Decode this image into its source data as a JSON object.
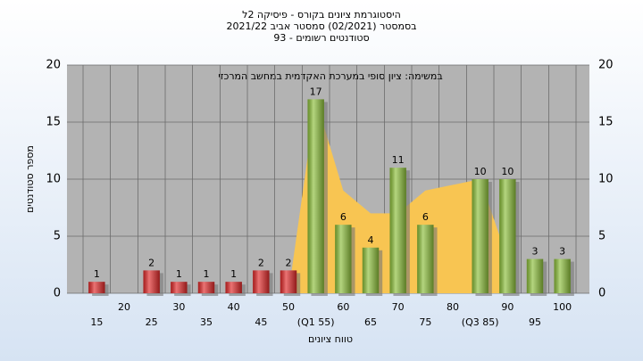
{
  "chart_data": {
    "type": "bar",
    "title_lines": [
      "היסטוגרמת ציונים בקורס - פיסיקה 2ל",
      "בסמסטר (02/2021) סמסטר אביב 2021/22",
      "סטודנטים רשומים - 93"
    ],
    "annotation": "במשימה: ציון סופי במערכת האקדמית במחשב המרכזי",
    "y_label": "מספר סטודנטים",
    "x_label": "טווח ציונים",
    "categories": [
      "15",
      "20",
      "25",
      "30",
      "35",
      "40",
      "45",
      "50",
      "(Q1 55)",
      "60",
      "65",
      "70",
      "75",
      "80",
      "(Q3 85)",
      "90",
      "95",
      "100"
    ],
    "values": [
      1,
      null,
      2,
      1,
      1,
      1,
      2,
      2,
      17,
      6,
      4,
      11,
      6,
      null,
      10,
      10,
      3,
      3
    ],
    "colors": [
      "#e02828",
      "#e02828",
      "#e02828",
      "#e02828",
      "#e02828",
      "#e02828",
      "#e02828",
      "#e02828",
      "#8cbf3a",
      "#8cbf3a",
      "#8cbf3a",
      "#8cbf3a",
      "#8cbf3a",
      "#8cbf3a",
      "#8cbf3a",
      "#8cbf3a",
      "#8cbf3a",
      "#8cbf3a"
    ],
    "area_values": [
      null,
      null,
      null,
      null,
      null,
      null,
      null,
      0,
      17,
      9,
      7,
      7,
      9,
      9.5,
      10,
      3,
      null,
      null
    ],
    "area_color": "#f8c552",
    "ylim": [
      0,
      20
    ],
    "yticks": [
      0,
      5,
      10,
      15,
      20
    ],
    "grid": true
  }
}
